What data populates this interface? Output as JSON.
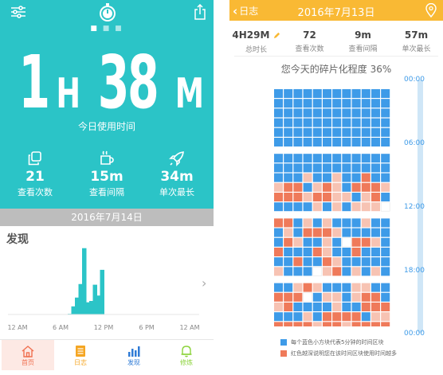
{
  "left": {
    "dots_active": 0,
    "dots_count": 3,
    "big_time": {
      "hours": "1",
      "h_unit": "H",
      "minutes": "38",
      "m_unit": "M"
    },
    "today_label": "今日使用时间",
    "stats": [
      {
        "icon": "copy-icon",
        "value": "21",
        "label": "查看次数"
      },
      {
        "icon": "coffee-cup-icon",
        "value": "15m",
        "label": "查看间隔"
      },
      {
        "icon": "rocket-icon",
        "value": "34m",
        "label": "单次最长"
      }
    ],
    "date": "2016年7月14日",
    "discover_title": "发现",
    "usage_chart": {
      "chart_data": {
        "type": "bar",
        "x": [
          7,
          7.5,
          8,
          8.5,
          9,
          9.5,
          10,
          10.5,
          11,
          11.5
        ],
        "values": [
          1,
          12,
          25,
          45,
          98,
          18,
          20,
          44,
          28,
          66
        ],
        "xticks": [
          "12 AM",
          "6 AM",
          "12 PM",
          "6 PM",
          "12 AM"
        ],
        "xtick_hours": [
          0,
          6,
          12,
          18,
          24
        ],
        "ylim": [
          0,
          100
        ],
        "color": "#2bc4c7"
      }
    },
    "tabs": [
      {
        "label": "首页",
        "icon": "home-icon",
        "color": "#f07050",
        "active": true
      },
      {
        "label": "日志",
        "icon": "document-icon",
        "color": "#f5a623",
        "active": false
      },
      {
        "label": "发现",
        "icon": "bar-chart-icon",
        "color": "#2f7bd6",
        "active": false
      },
      {
        "label": "修炼",
        "icon": "bell-icon",
        "color": "#8cd33b",
        "active": false
      }
    ]
  },
  "right": {
    "back_label": "日志",
    "date": "2016年7月13日",
    "stats": [
      {
        "value": "4H29M",
        "label": "总时长",
        "has_edit": true
      },
      {
        "value": "72",
        "label": "查看次数"
      },
      {
        "value": "9m",
        "label": "查看间隔"
      },
      {
        "value": "57m",
        "label": "单次最长"
      }
    ],
    "fragment_text": "您今天的碎片化程度 36%",
    "time_labels": [
      "00:00",
      "06:00",
      "12:00",
      "18:00",
      "00:00"
    ],
    "colors": {
      "blue": "#3e9be8",
      "red": "#ef7a5a",
      "pink": "#f7c3b3",
      "white": "#ffffff",
      "accent": "#f9b934"
    },
    "grid": [
      "BBBBBBBBBBBB",
      "BBBBBBBBBBBB",
      "BBBBBBBBBBBB",
      "BBBBBBBBBBBB",
      "BBBBBBBBBBBB",
      "BBBBBBBBBBBB",
      "BBBBBBBBBBBB",
      "BBBBBBBBBBBB",
      "BBBPBBPBBRBB",
      "PRRBPRPBRRRP",
      "RRRPRRPPBPRB",
      "BBBBPBPBPPPW",
      "RRBPBPBBBPBB",
      "BPBRRRPBBBBB",
      "BRPBBPBWRRPB",
      "RBBBRPBBRBBB",
      "BBRBBRPBBBBB",
      "PBBBWPRBPBPB",
      "BBPRPBBBPPBB",
      "RRRWBPPBPRRB",
      "PRBBBBPBBRRR",
      "BBBPBRRRRBPP",
      "RRRRPRRPRRRR",
      "BRRBRRRPRRBB"
    ],
    "legend": [
      {
        "color": "#3e9be8",
        "text": "每个蓝色小方块代表5分钟的时间区块"
      },
      {
        "color": "#ef7a5a",
        "text": "红色越深说明您在该时间区块使用时间越多"
      }
    ]
  }
}
